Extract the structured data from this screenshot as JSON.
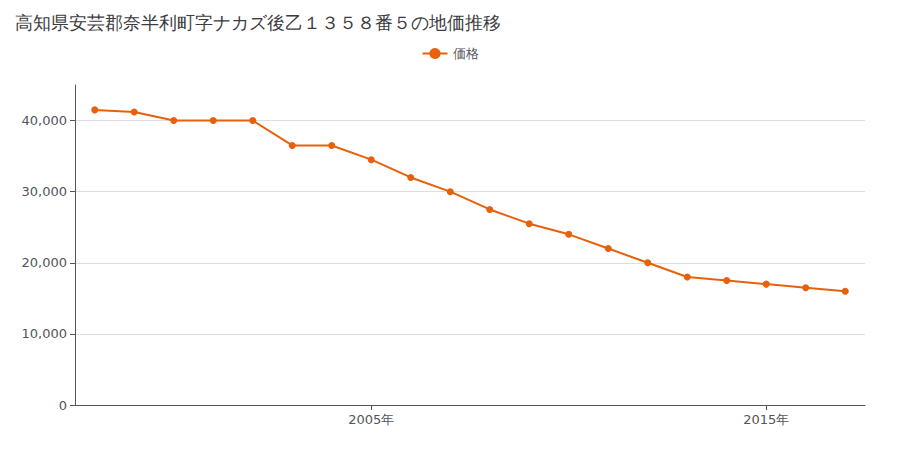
{
  "chart_data": {
    "type": "line",
    "title": "高知県安芸郡奈半利町字ナカズ後乙１３５８番５の地価推移",
    "x": [
      1998,
      1999,
      2000,
      2001,
      2002,
      2003,
      2004,
      2005,
      2006,
      2007,
      2008,
      2009,
      2010,
      2011,
      2012,
      2013,
      2014,
      2015,
      2016,
      2017
    ],
    "series": [
      {
        "name": "価格",
        "color": "#e8600a",
        "values": [
          41500,
          41200,
          40000,
          40000,
          40000,
          36500,
          36500,
          34500,
          32000,
          30000,
          27500,
          25500,
          24000,
          22000,
          20000,
          18000,
          17500,
          17000,
          16500,
          16000
        ]
      }
    ],
    "xlim": [
      1997.5,
      2017.5
    ],
    "xticks": [
      {
        "value": 2005,
        "label": "2005年"
      },
      {
        "value": 2015,
        "label": "2015年"
      }
    ],
    "ylim": [
      0,
      45000
    ],
    "yticks": [
      0,
      {
        "value": 10000,
        "label": "10,000"
      },
      {
        "value": 20000,
        "label": "20,000"
      },
      {
        "value": 30000,
        "label": "30,000"
      },
      {
        "value": 40000,
        "label": "40,000"
      }
    ],
    "grid": true,
    "legend": "top",
    "marker": "circle"
  }
}
